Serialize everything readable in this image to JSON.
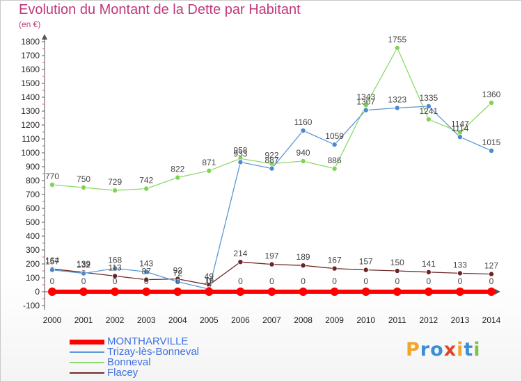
{
  "title": "Evolution du Montant de la Dette par Habitant",
  "subtitle": "(en €)",
  "logo": {
    "letters": [
      "P",
      "r",
      "o",
      "x",
      "i",
      "t",
      "i"
    ],
    "colors": [
      "#f0a52b",
      "#3a8fd8",
      "#3a8fd8",
      "#e0452b",
      "#f0a52b",
      "#3a8fd8",
      "#7cc243"
    ]
  },
  "chart_data": {
    "type": "line",
    "x": [
      "2000",
      "2001",
      "2002",
      "2003",
      "2004",
      "2005",
      "2006",
      "2007",
      "2008",
      "2009",
      "2010",
      "2011",
      "2012",
      "2013",
      "2014"
    ],
    "ylim": [
      -100,
      1800
    ],
    "yticks": [
      "-100",
      "0",
      "100",
      "200",
      "300",
      "400",
      "500",
      "600",
      "700",
      "800",
      "900",
      "1000",
      "1100",
      "1200",
      "1300",
      "1400",
      "1500",
      "1600",
      "1700",
      "1800"
    ],
    "grid": false,
    "legend_position": "bottom-left",
    "series": [
      {
        "name": "MONTHARVILLE",
        "color": "#ff0000",
        "marker_fill": "#ff0000",
        "values": [
          0,
          0,
          0,
          0,
          0,
          0,
          0,
          0,
          0,
          0,
          0,
          0,
          0,
          0,
          0
        ],
        "labels": [
          "0",
          "0",
          "0",
          "0",
          "0",
          "0",
          "0",
          "0",
          "0",
          "0",
          "0",
          "0",
          "0",
          "0",
          "0"
        ]
      },
      {
        "name": "Trizay-lès-Bonneval",
        "color": "#5a97d4",
        "marker_fill": "#4a8ad0",
        "values": [
          157,
          132,
          168,
          143,
          72,
          19,
          933,
          887,
          1160,
          1059,
          1307,
          1323,
          1335,
          1114,
          1015
        ],
        "labels": [
          "157",
          "132",
          "168",
          "143",
          "72",
          "19",
          "933",
          "887",
          "1160",
          "1059",
          "1307",
          "1323",
          "1335",
          "1114",
          "1015"
        ]
      },
      {
        "name": "Bonneval",
        "color": "#8dd86a",
        "marker_fill": "#7fd452",
        "values": [
          770,
          750,
          729,
          742,
          822,
          871,
          958,
          922,
          940,
          886,
          1343,
          1755,
          1241,
          1147,
          1360
        ],
        "labels": [
          "770",
          "750",
          "729",
          "742",
          "822",
          "871",
          "958",
          "922",
          "940",
          "886",
          "1343",
          "1755",
          "1241",
          "1147",
          "1360"
        ]
      },
      {
        "name": "Flacey",
        "color": "#6e2a2a",
        "marker_fill": "#6e2424",
        "values": [
          164,
          139,
          113,
          87,
          92,
          49,
          214,
          197,
          189,
          167,
          157,
          150,
          141,
          133,
          127
        ],
        "labels": [
          "164",
          "139",
          "113",
          "87",
          "92",
          "49",
          "214",
          "197",
          "189",
          "167",
          "157",
          "150",
          "141",
          "133",
          "127"
        ]
      }
    ]
  }
}
